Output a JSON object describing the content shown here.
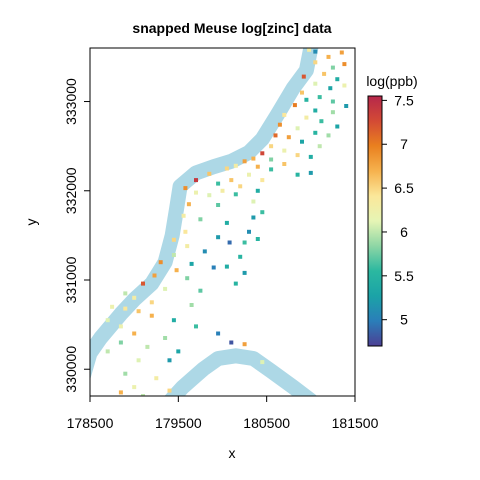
{
  "chart_data": {
    "type": "scatter",
    "title": "snapped Meuse log[zinc] data",
    "xlabel": "x",
    "ylabel": "y",
    "xlim": [
      178500,
      181500
    ],
    "ylim": [
      329700,
      333600
    ],
    "x_ticks": [
      178500,
      179500,
      180500,
      181500
    ],
    "x_tick_labels": [
      "178500",
      "179500",
      "180500",
      "181500"
    ],
    "y_ticks": [
      330000,
      331000,
      332000,
      333000
    ],
    "y_tick_labels": [
      "330000",
      "331000",
      "332000",
      "333000"
    ],
    "legend": {
      "title": "log(ppb)",
      "placement": "right",
      "range": [
        4.7,
        7.55
      ],
      "ticks": [
        5,
        5.5,
        6,
        6.5,
        7,
        7.5
      ],
      "tick_labels": [
        "5",
        "5.5",
        "6",
        "6.5",
        "7",
        "7.5"
      ],
      "color_stops": [
        "#4c3f94",
        "#2a7eb9",
        "#1ba3a7",
        "#2bb8a0",
        "#8ed6a5",
        "#e6f5b5",
        "#fbe79a",
        "#f6b24e",
        "#e9801f",
        "#d34a35",
        "#b6274b"
      ]
    },
    "river": {
      "color": "#add8e6",
      "upper_bank": [
        [
          178400,
          329840
        ],
        [
          178500,
          330180
        ],
        [
          178620,
          330350
        ],
        [
          178850,
          330620
        ],
        [
          179000,
          330780
        ],
        [
          179200,
          330960
        ],
        [
          179350,
          331200
        ],
        [
          179430,
          331500
        ],
        [
          179480,
          331800
        ],
        [
          179520,
          332050
        ],
        [
          179700,
          332200
        ],
        [
          179900,
          332270
        ],
        [
          180100,
          332330
        ],
        [
          180300,
          332430
        ],
        [
          180450,
          332580
        ],
        [
          180620,
          332850
        ],
        [
          180800,
          333150
        ],
        [
          180950,
          333350
        ],
        [
          181000,
          333600
        ]
      ],
      "lower_loop": [
        [
          179320,
          329550
        ],
        [
          179550,
          329800
        ],
        [
          179780,
          330000
        ],
        [
          179950,
          330120
        ],
        [
          180150,
          330150
        ],
        [
          180350,
          330120
        ],
        [
          180550,
          329980
        ],
        [
          180800,
          329800
        ],
        [
          181000,
          329650
        ]
      ]
    },
    "points": [
      [
        180980,
        333580,
        6.3
      ],
      [
        181050,
        333560,
        5.1
      ],
      [
        181200,
        333500,
        6.7
      ],
      [
        181350,
        333550,
        6.8
      ],
      [
        181050,
        333440,
        6.5
      ],
      [
        181250,
        333380,
        5.8
      ],
      [
        181380,
        333420,
        6.9
      ],
      [
        181150,
        333310,
        6.6
      ],
      [
        180920,
        333280,
        7.2
      ],
      [
        181300,
        333250,
        5.4
      ],
      [
        181050,
        333200,
        6.1
      ],
      [
        181220,
        333150,
        5.3
      ],
      [
        181380,
        333180,
        6.2
      ],
      [
        180900,
        333100,
        6.6
      ],
      [
        181100,
        333050,
        5.6
      ],
      [
        180950,
        333020,
        5.5
      ],
      [
        181250,
        333000,
        5.7
      ],
      [
        181400,
        332950,
        5.2
      ],
      [
        180820,
        332960,
        7.0
      ],
      [
        181050,
        332900,
        5.4
      ],
      [
        180700,
        332850,
        6.4
      ],
      [
        181250,
        332880,
        5.9
      ],
      [
        180950,
        332820,
        6.3
      ],
      [
        181120,
        332780,
        5.6
      ],
      [
        180650,
        332740,
        6.9
      ],
      [
        181300,
        332720,
        5.3
      ],
      [
        180850,
        332700,
        6.1
      ],
      [
        181050,
        332650,
        5.5
      ],
      [
        180600,
        332620,
        7.1
      ],
      [
        180750,
        332600,
        6.8
      ],
      [
        181200,
        332620,
        5.9
      ],
      [
        180900,
        332550,
        5.3
      ],
      [
        181100,
        332500,
        6.0
      ],
      [
        180550,
        332500,
        6.5
      ],
      [
        180700,
        332450,
        6.2
      ],
      [
        180450,
        332420,
        7.3
      ],
      [
        180850,
        332400,
        6.5
      ],
      [
        181000,
        332380,
        5.4
      ],
      [
        180350,
        332360,
        6.7
      ],
      [
        180550,
        332350,
        5.8
      ],
      [
        180250,
        332330,
        6.8
      ],
      [
        180700,
        332300,
        6.6
      ],
      [
        180150,
        332280,
        6.3
      ],
      [
        180400,
        332270,
        6.7
      ],
      [
        180050,
        332250,
        6.5
      ],
      [
        180550,
        332240,
        5.6
      ],
      [
        181000,
        332200,
        5.2
      ],
      [
        179850,
        332190,
        6.6
      ],
      [
        180300,
        332180,
        6.2
      ],
      [
        180850,
        332180,
        5.5
      ],
      [
        179700,
        332120,
        7.4
      ],
      [
        180100,
        332120,
        6.6
      ],
      [
        180450,
        332120,
        6.4
      ],
      [
        179950,
        332080,
        5.6
      ],
      [
        180200,
        332050,
        6.5
      ],
      [
        179580,
        332030,
        6.9
      ],
      [
        180000,
        332000,
        6.3
      ],
      [
        180400,
        332000,
        5.4
      ],
      [
        179700,
        331980,
        6.2
      ],
      [
        180150,
        331960,
        5.6
      ],
      [
        179850,
        331950,
        6.1
      ],
      [
        180350,
        331880,
        6.1
      ],
      [
        179620,
        331850,
        6.7
      ],
      [
        179950,
        331840,
        5.7
      ],
      [
        180450,
        331760,
        5.6
      ],
      [
        179560,
        331720,
        6.3
      ],
      [
        180350,
        331700,
        5.2
      ],
      [
        179750,
        331680,
        5.8
      ],
      [
        180050,
        331640,
        5.4
      ],
      [
        180300,
        331540,
        5.1
      ],
      [
        179580,
        331540,
        6.4
      ],
      [
        179950,
        331480,
        5.2
      ],
      [
        180400,
        331460,
        5.5
      ],
      [
        179450,
        331450,
        6.5
      ],
      [
        180250,
        331420,
        5.6
      ],
      [
        180080,
        331420,
        4.9
      ],
      [
        179600,
        331380,
        6.3
      ],
      [
        179800,
        331320,
        5.1
      ],
      [
        179450,
        331280,
        6.0
      ],
      [
        180200,
        331260,
        5.5
      ],
      [
        179300,
        331200,
        6.9
      ],
      [
        179650,
        331180,
        5.3
      ],
      [
        179900,
        331140,
        5.0
      ],
      [
        180050,
        331150,
        5.4
      ],
      [
        179480,
        331110,
        6.7
      ],
      [
        180250,
        331080,
        5.2
      ],
      [
        179230,
        331050,
        6.8
      ],
      [
        179600,
        331020,
        5.8
      ],
      [
        180150,
        330960,
        5.5
      ],
      [
        179100,
        330960,
        7.2
      ],
      [
        179350,
        330900,
        6.1
      ],
      [
        179750,
        330880,
        5.7
      ],
      [
        178900,
        330850,
        6.0
      ],
      [
        179000,
        330800,
        6.3
      ],
      [
        179200,
        330750,
        6.5
      ],
      [
        179650,
        330720,
        5.9
      ],
      [
        178750,
        330700,
        6.2
      ],
      [
        178900,
        330680,
        6.4
      ],
      [
        179050,
        330650,
        6.6
      ],
      [
        179200,
        330600,
        6.7
      ],
      [
        179450,
        330550,
        5.4
      ],
      [
        179700,
        330480,
        5.6
      ],
      [
        179950,
        330400,
        5.0
      ],
      [
        178700,
        330550,
        6.1
      ],
      [
        178850,
        330480,
        6.2
      ],
      [
        179000,
        330400,
        6.7
      ],
      [
        179350,
        330350,
        5.9
      ],
      [
        180100,
        330300,
        4.8
      ],
      [
        178850,
        330300,
        5.8
      ],
      [
        179150,
        330250,
        6.0
      ],
      [
        179500,
        330200,
        5.3
      ],
      [
        180250,
        330280,
        6.8
      ],
      [
        178700,
        330200,
        6.0
      ],
      [
        179050,
        330100,
        6.1
      ],
      [
        179400,
        330100,
        5.2
      ],
      [
        178900,
        329950,
        5.9
      ],
      [
        179250,
        329900,
        6.3
      ],
      [
        180450,
        330080,
        6.1
      ],
      [
        179000,
        329800,
        6.2
      ],
      [
        178850,
        329740,
        6.7
      ],
      [
        179100,
        329700,
        6.0
      ],
      [
        179400,
        329760,
        6.5
      ]
    ]
  }
}
